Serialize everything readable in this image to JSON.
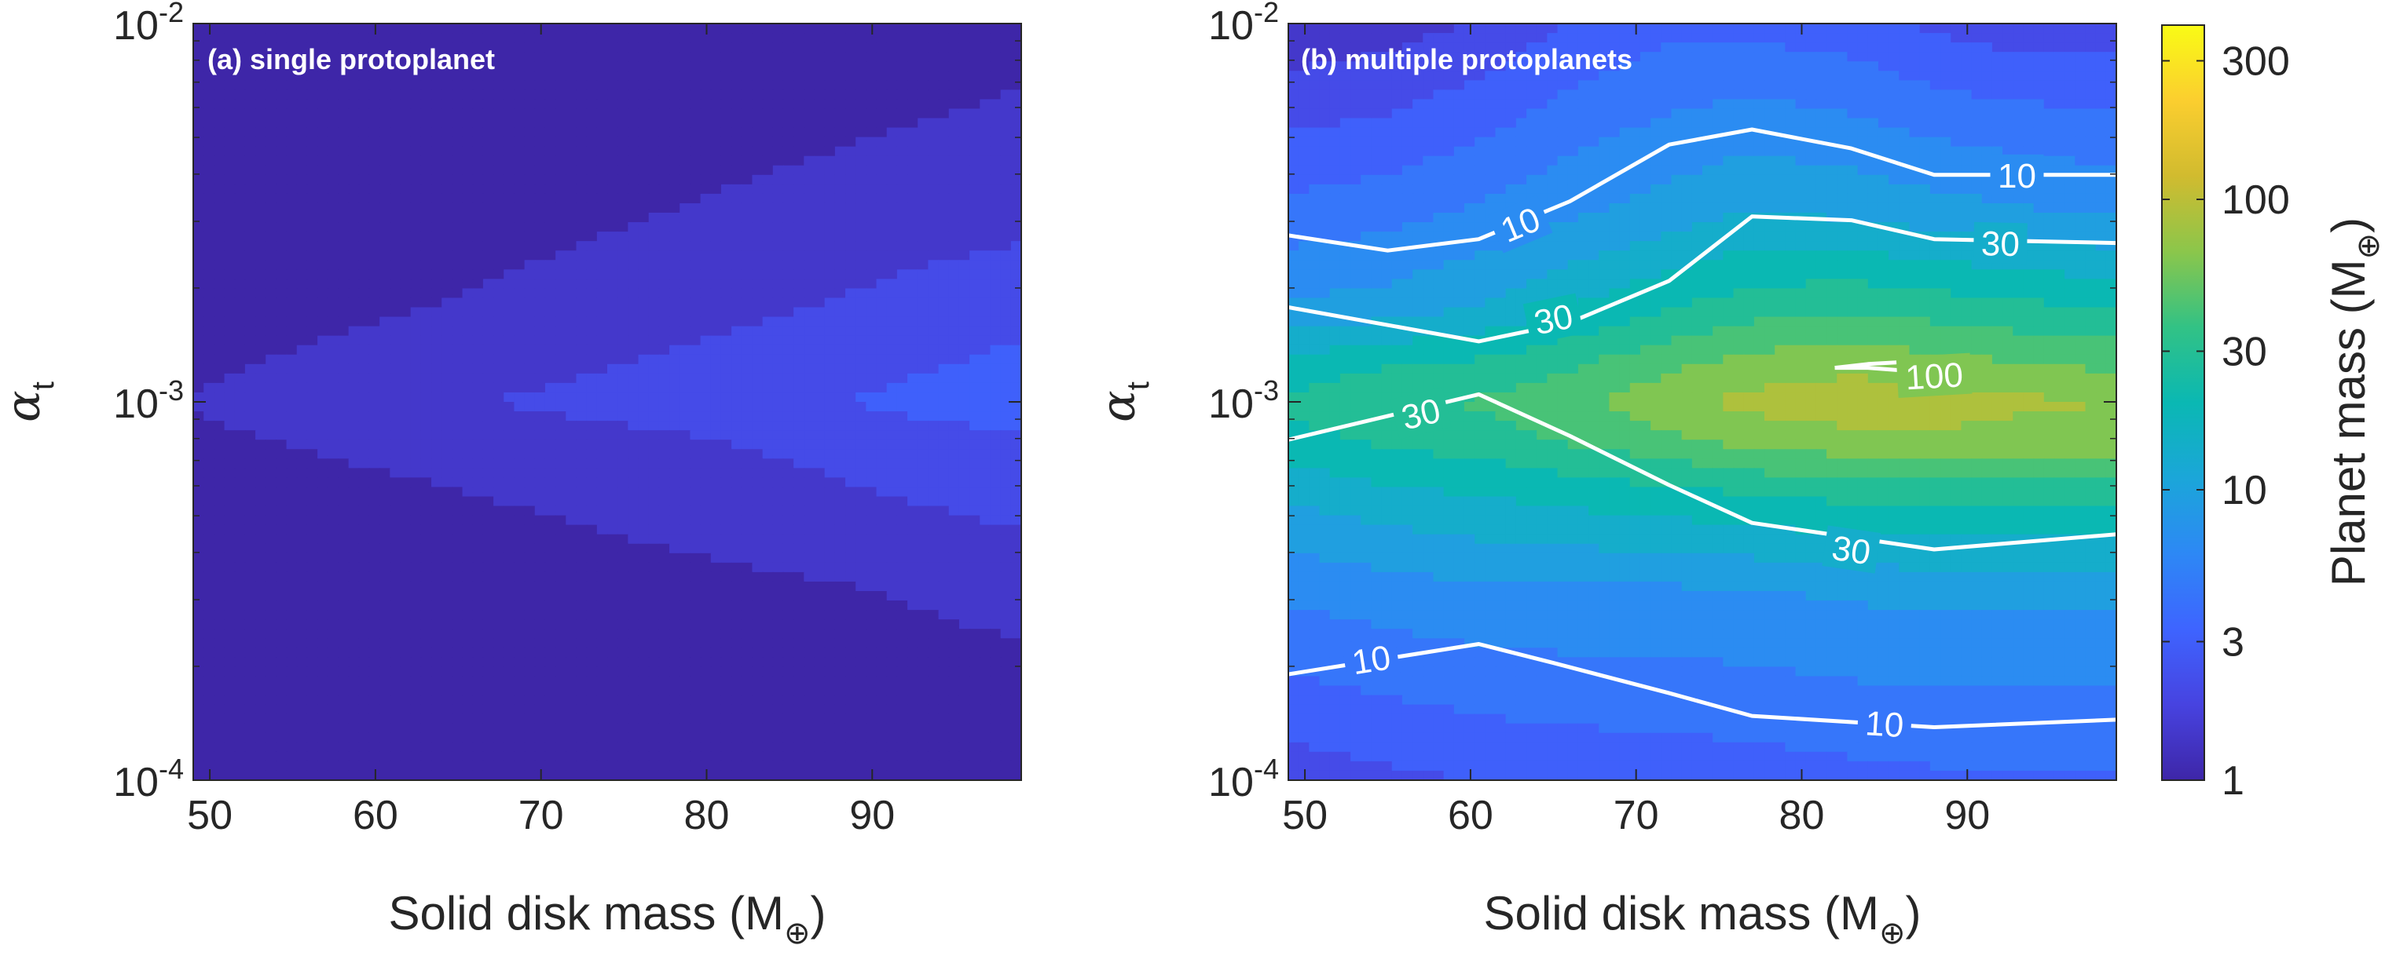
{
  "figure": {
    "colors": {
      "contour_line": "#ffffff",
      "axis": "#262626",
      "background": "#ffffff"
    },
    "colormap": [
      "#3e26a8",
      "#4743e0",
      "#3e64ff",
      "#2d88f5",
      "#1ba6d9",
      "#0ab8b3",
      "#32c285",
      "#8bc64b",
      "#d1bb2f",
      "#fbce2f",
      "#f9fb15"
    ]
  },
  "chart_data": [
    {
      "id": "a",
      "type": "contourf",
      "panel_label": "(a) single protoplanet",
      "xlabel": "Solid disk mass (M",
      "xlabel_sub": "⊕",
      "xlabel_close": ")",
      "ylabel": "α",
      "ylabel_sub": "t",
      "xlim": [
        49,
        99
      ],
      "ylim_log10": [
        -4,
        -2
      ],
      "x_ticks": [
        50,
        60,
        70,
        80,
        90
      ],
      "x_tick_labels": [
        "50",
        "60",
        "70",
        "80",
        "90"
      ],
      "y_ticks_log10": [
        -4,
        -3,
        -2
      ],
      "y_tick_labels": [
        {
          "base": "10",
          "exp": "-4"
        },
        {
          "base": "10",
          "exp": "-3"
        },
        {
          "base": "10",
          "exp": "-2"
        }
      ],
      "x": [
        49,
        55,
        61,
        66,
        72,
        77,
        83,
        88,
        93,
        99
      ],
      "y_log10": [
        -4.0,
        -3.5,
        -3.25,
        -3.1,
        -3.0,
        -2.9,
        -2.75,
        -2.5,
        -2.0
      ],
      "z_log10": [
        [
          0.0,
          0.0,
          0.0,
          0.0,
          0.0,
          0.0,
          0.0,
          0.0,
          0.0,
          0.0
        ],
        [
          0.02,
          0.03,
          0.05,
          0.07,
          0.09,
          0.11,
          0.13,
          0.15,
          0.18,
          0.22
        ],
        [
          0.07,
          0.1,
          0.13,
          0.16,
          0.19,
          0.22,
          0.26,
          0.3,
          0.34,
          0.38
        ],
        [
          0.13,
          0.17,
          0.21,
          0.24,
          0.27,
          0.3,
          0.34,
          0.38,
          0.42,
          0.47
        ],
        [
          0.17,
          0.24,
          0.28,
          0.32,
          0.36,
          0.4,
          0.44,
          0.48,
          0.54,
          0.58
        ],
        [
          0.13,
          0.18,
          0.22,
          0.26,
          0.3,
          0.34,
          0.38,
          0.42,
          0.47,
          0.53
        ],
        [
          0.07,
          0.11,
          0.15,
          0.18,
          0.22,
          0.26,
          0.3,
          0.34,
          0.38,
          0.42
        ],
        [
          0.03,
          0.05,
          0.08,
          0.1,
          0.13,
          0.16,
          0.19,
          0.22,
          0.25,
          0.28
        ],
        [
          0.0,
          0.0,
          0.0,
          0.01,
          0.02,
          0.03,
          0.04,
          0.05,
          0.07,
          0.1
        ]
      ],
      "contour_lines": []
    },
    {
      "id": "b",
      "type": "contourf",
      "panel_label": "(b) multiple protoplanets",
      "xlabel": "Solid disk mass (M",
      "xlabel_sub": "⊕",
      "xlabel_close": ")",
      "ylabel": "α",
      "ylabel_sub": "t",
      "xlim": [
        49,
        99
      ],
      "ylim_log10": [
        -4,
        -2
      ],
      "x_ticks": [
        50,
        60,
        70,
        80,
        90
      ],
      "x_tick_labels": [
        "50",
        "60",
        "70",
        "80",
        "90"
      ],
      "y_ticks_log10": [
        -4,
        -3,
        -2
      ],
      "y_tick_labels": [
        {
          "base": "10",
          "exp": "-4"
        },
        {
          "base": "10",
          "exp": "-3"
        },
        {
          "base": "10",
          "exp": "-2"
        }
      ],
      "x": [
        49,
        55,
        61,
        66,
        72,
        77,
        83,
        88,
        93,
        99
      ],
      "y_log10": [
        -4.0,
        -3.5,
        -3.25,
        -3.1,
        -3.0,
        -2.9,
        -2.75,
        -2.5,
        -2.0
      ],
      "z_log10": [
        [
          0.4,
          0.45,
          0.5,
          0.53,
          0.55,
          0.57,
          0.6,
          0.62,
          0.62,
          0.62
        ],
        [
          0.85,
          0.9,
          0.95,
          0.95,
          0.95,
          0.97,
          1.0,
          1.02,
          1.02,
          1.02
        ],
        [
          1.15,
          1.25,
          1.3,
          1.35,
          1.4,
          1.45,
          1.5,
          1.52,
          1.52,
          1.52
        ],
        [
          1.4,
          1.5,
          1.55,
          1.65,
          1.75,
          1.85,
          1.9,
          1.92,
          1.9,
          1.88
        ],
        [
          1.5,
          1.6,
          1.65,
          1.75,
          1.9,
          2.0,
          2.05,
          2.02,
          1.98,
          1.95
        ],
        [
          1.35,
          1.45,
          1.5,
          1.6,
          1.75,
          1.85,
          1.9,
          1.85,
          1.8,
          1.75
        ],
        [
          1.0,
          1.05,
          1.15,
          1.3,
          1.45,
          1.55,
          1.6,
          1.55,
          1.5,
          1.45
        ],
        [
          0.7,
          0.75,
          0.85,
          0.95,
          1.05,
          1.15,
          1.1,
          1.05,
          1.0,
          0.95
        ],
        [
          0.2,
          0.25,
          0.35,
          0.5,
          0.6,
          0.6,
          0.55,
          0.45,
          0.4,
          0.4
        ]
      ],
      "contour_lines": [
        {
          "level": 10,
          "label": "10",
          "points": [
            [
              49,
              -3.72
            ],
            [
              60.5,
              -3.64
            ],
            [
              65,
              -3.69
            ],
            [
              72,
              -3.77
            ],
            [
              77,
              -3.83
            ],
            [
              88,
              -3.86
            ],
            [
              99,
              -3.84
            ]
          ],
          "labels_at": [
            [
              54,
              -3.68
            ],
            [
              85,
              -3.85
            ]
          ]
        },
        {
          "level": 30,
          "label": "30",
          "points": [
            [
              49,
              -3.1
            ],
            [
              60.5,
              -2.98
            ],
            [
              66,
              -3.09
            ],
            [
              72,
              -3.22
            ],
            [
              77,
              -3.32
            ],
            [
              88,
              -3.39
            ],
            [
              99,
              -3.35
            ]
          ],
          "labels_at": [
            [
              57,
              -3.03
            ],
            [
              83,
              -3.39
            ]
          ]
        },
        {
          "level": 30,
          "label": "30",
          "points": [
            [
              49,
              -2.75
            ],
            [
              60.5,
              -2.84
            ],
            [
              66,
              -2.79
            ],
            [
              72,
              -2.68
            ],
            [
              77,
              -2.51
            ],
            [
              83,
              -2.52
            ],
            [
              88,
              -2.57
            ],
            [
              99,
              -2.58
            ]
          ],
          "labels_at": [
            [
              65,
              -2.78
            ],
            [
              92,
              -2.58
            ]
          ]
        },
        {
          "level": 10,
          "label": "10",
          "points": [
            [
              49,
              -2.56
            ],
            [
              55,
              -2.6
            ],
            [
              60.5,
              -2.57
            ],
            [
              66,
              -2.47
            ],
            [
              72,
              -2.32
            ],
            [
              77,
              -2.28
            ],
            [
              83,
              -2.33
            ],
            [
              88,
              -2.4
            ],
            [
              99,
              -2.4
            ]
          ],
          "labels_at": [
            [
              63,
              -2.53
            ],
            [
              93,
              -2.4
            ]
          ]
        },
        {
          "level": 100,
          "label": "100",
          "points": [
            [
              82,
              -2.91
            ],
            [
              84,
              -2.9
            ],
            [
              88,
              -2.89
            ],
            [
              89,
              -2.91
            ],
            [
              87,
              -2.92
            ],
            [
              84,
              -2.91
            ],
            [
              82,
              -2.91
            ]
          ],
          "labels_at": [
            [
              88,
              -2.93
            ]
          ]
        }
      ]
    }
  ],
  "colorbar": {
    "label": "Planet mass (M",
    "label_sub": "⊕",
    "label_close": ")",
    "range_log10": [
      0,
      2.6
    ],
    "ticks": [
      1,
      3,
      10,
      30,
      100,
      300
    ],
    "tick_labels": [
      "1",
      "3",
      "10",
      "30",
      "100",
      "300"
    ]
  }
}
